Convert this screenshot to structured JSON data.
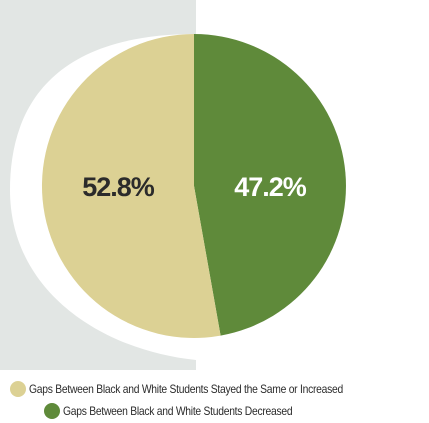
{
  "chart_data": {
    "type": "pie",
    "series": [
      {
        "label": "Gaps Between Black and White Students Stayed the Same or Increased",
        "value": 52.8,
        "display": "52.8%",
        "color": "#dcd194",
        "label_color": "#2b2b2b"
      },
      {
        "label": "Gaps Between Black and White Students Decreased",
        "value": 47.2,
        "display": "47.2%",
        "color": "#5f8a3a",
        "label_color": "#ffffff"
      }
    ],
    "background_band_color": "#e2e6e4",
    "legend_placement": "bottom"
  }
}
